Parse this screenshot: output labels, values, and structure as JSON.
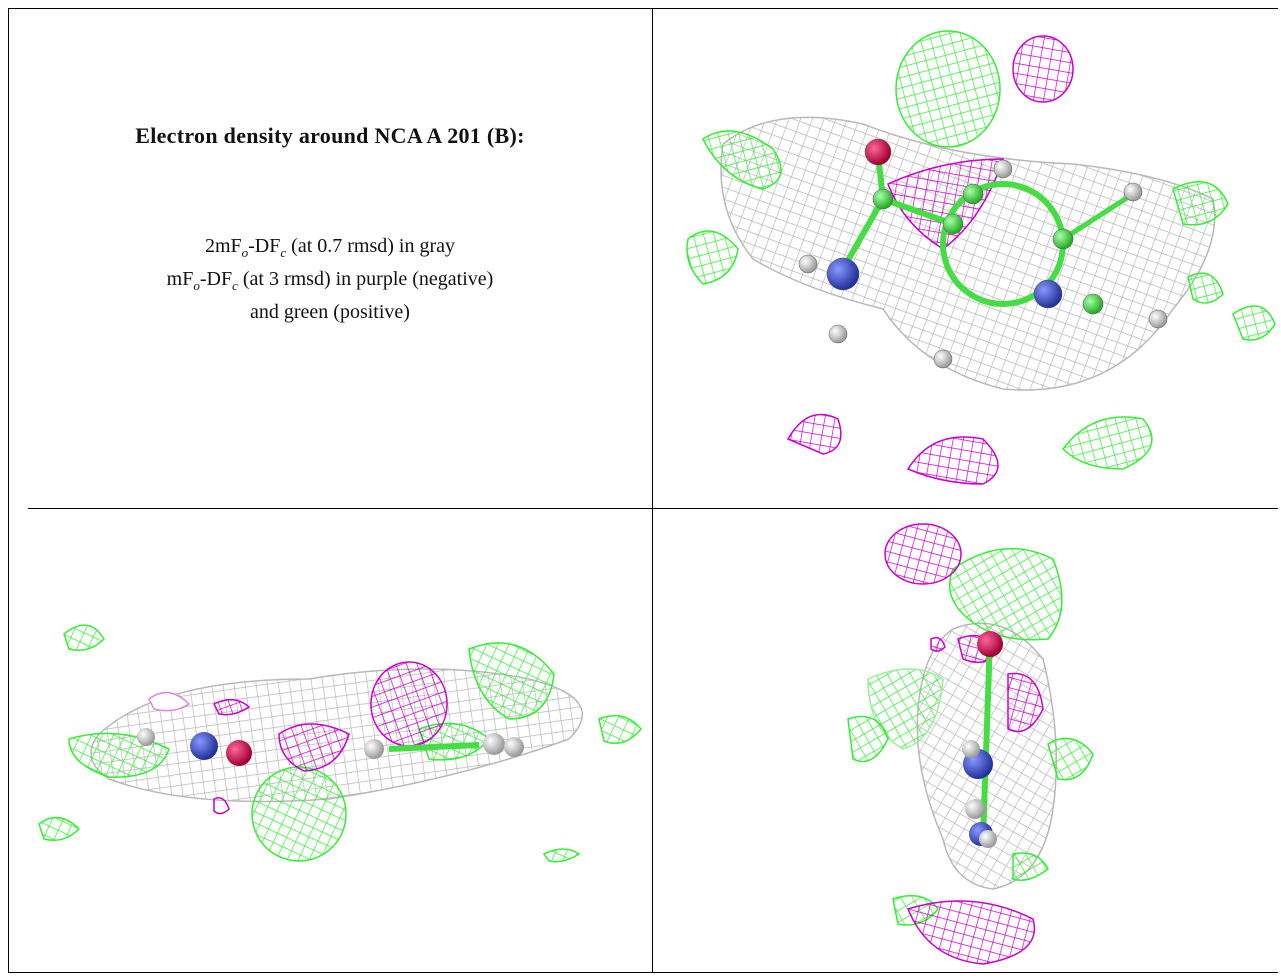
{
  "caption": {
    "title": "Electron density around NCA A 201 (B):",
    "line1_pre": "2mF",
    "line1_sub1": "o",
    "line1_mid": "-DF",
    "line1_sub2": "c",
    "line1_post": " (at 0.7 rmsd) in gray",
    "line2_pre": "mF",
    "line2_sub1": "o",
    "line2_mid": "-DF",
    "line2_sub2": "c",
    "line2_post": " (at 3 rmsd) in purple (negative)",
    "line3": "and green (positive)"
  },
  "colors": {
    "gray_mesh": "#b8b8b8",
    "negative": "#cc00cc",
    "positive": "#33ee33",
    "nitrogen": "#3344cc",
    "oxygen": "#dd1155",
    "carbon": "#44dd44",
    "hydrogen": "#e8e8e8"
  },
  "panels": [
    {
      "view": "top-right"
    },
    {
      "view": "bottom-left"
    },
    {
      "view": "bottom-right"
    }
  ]
}
